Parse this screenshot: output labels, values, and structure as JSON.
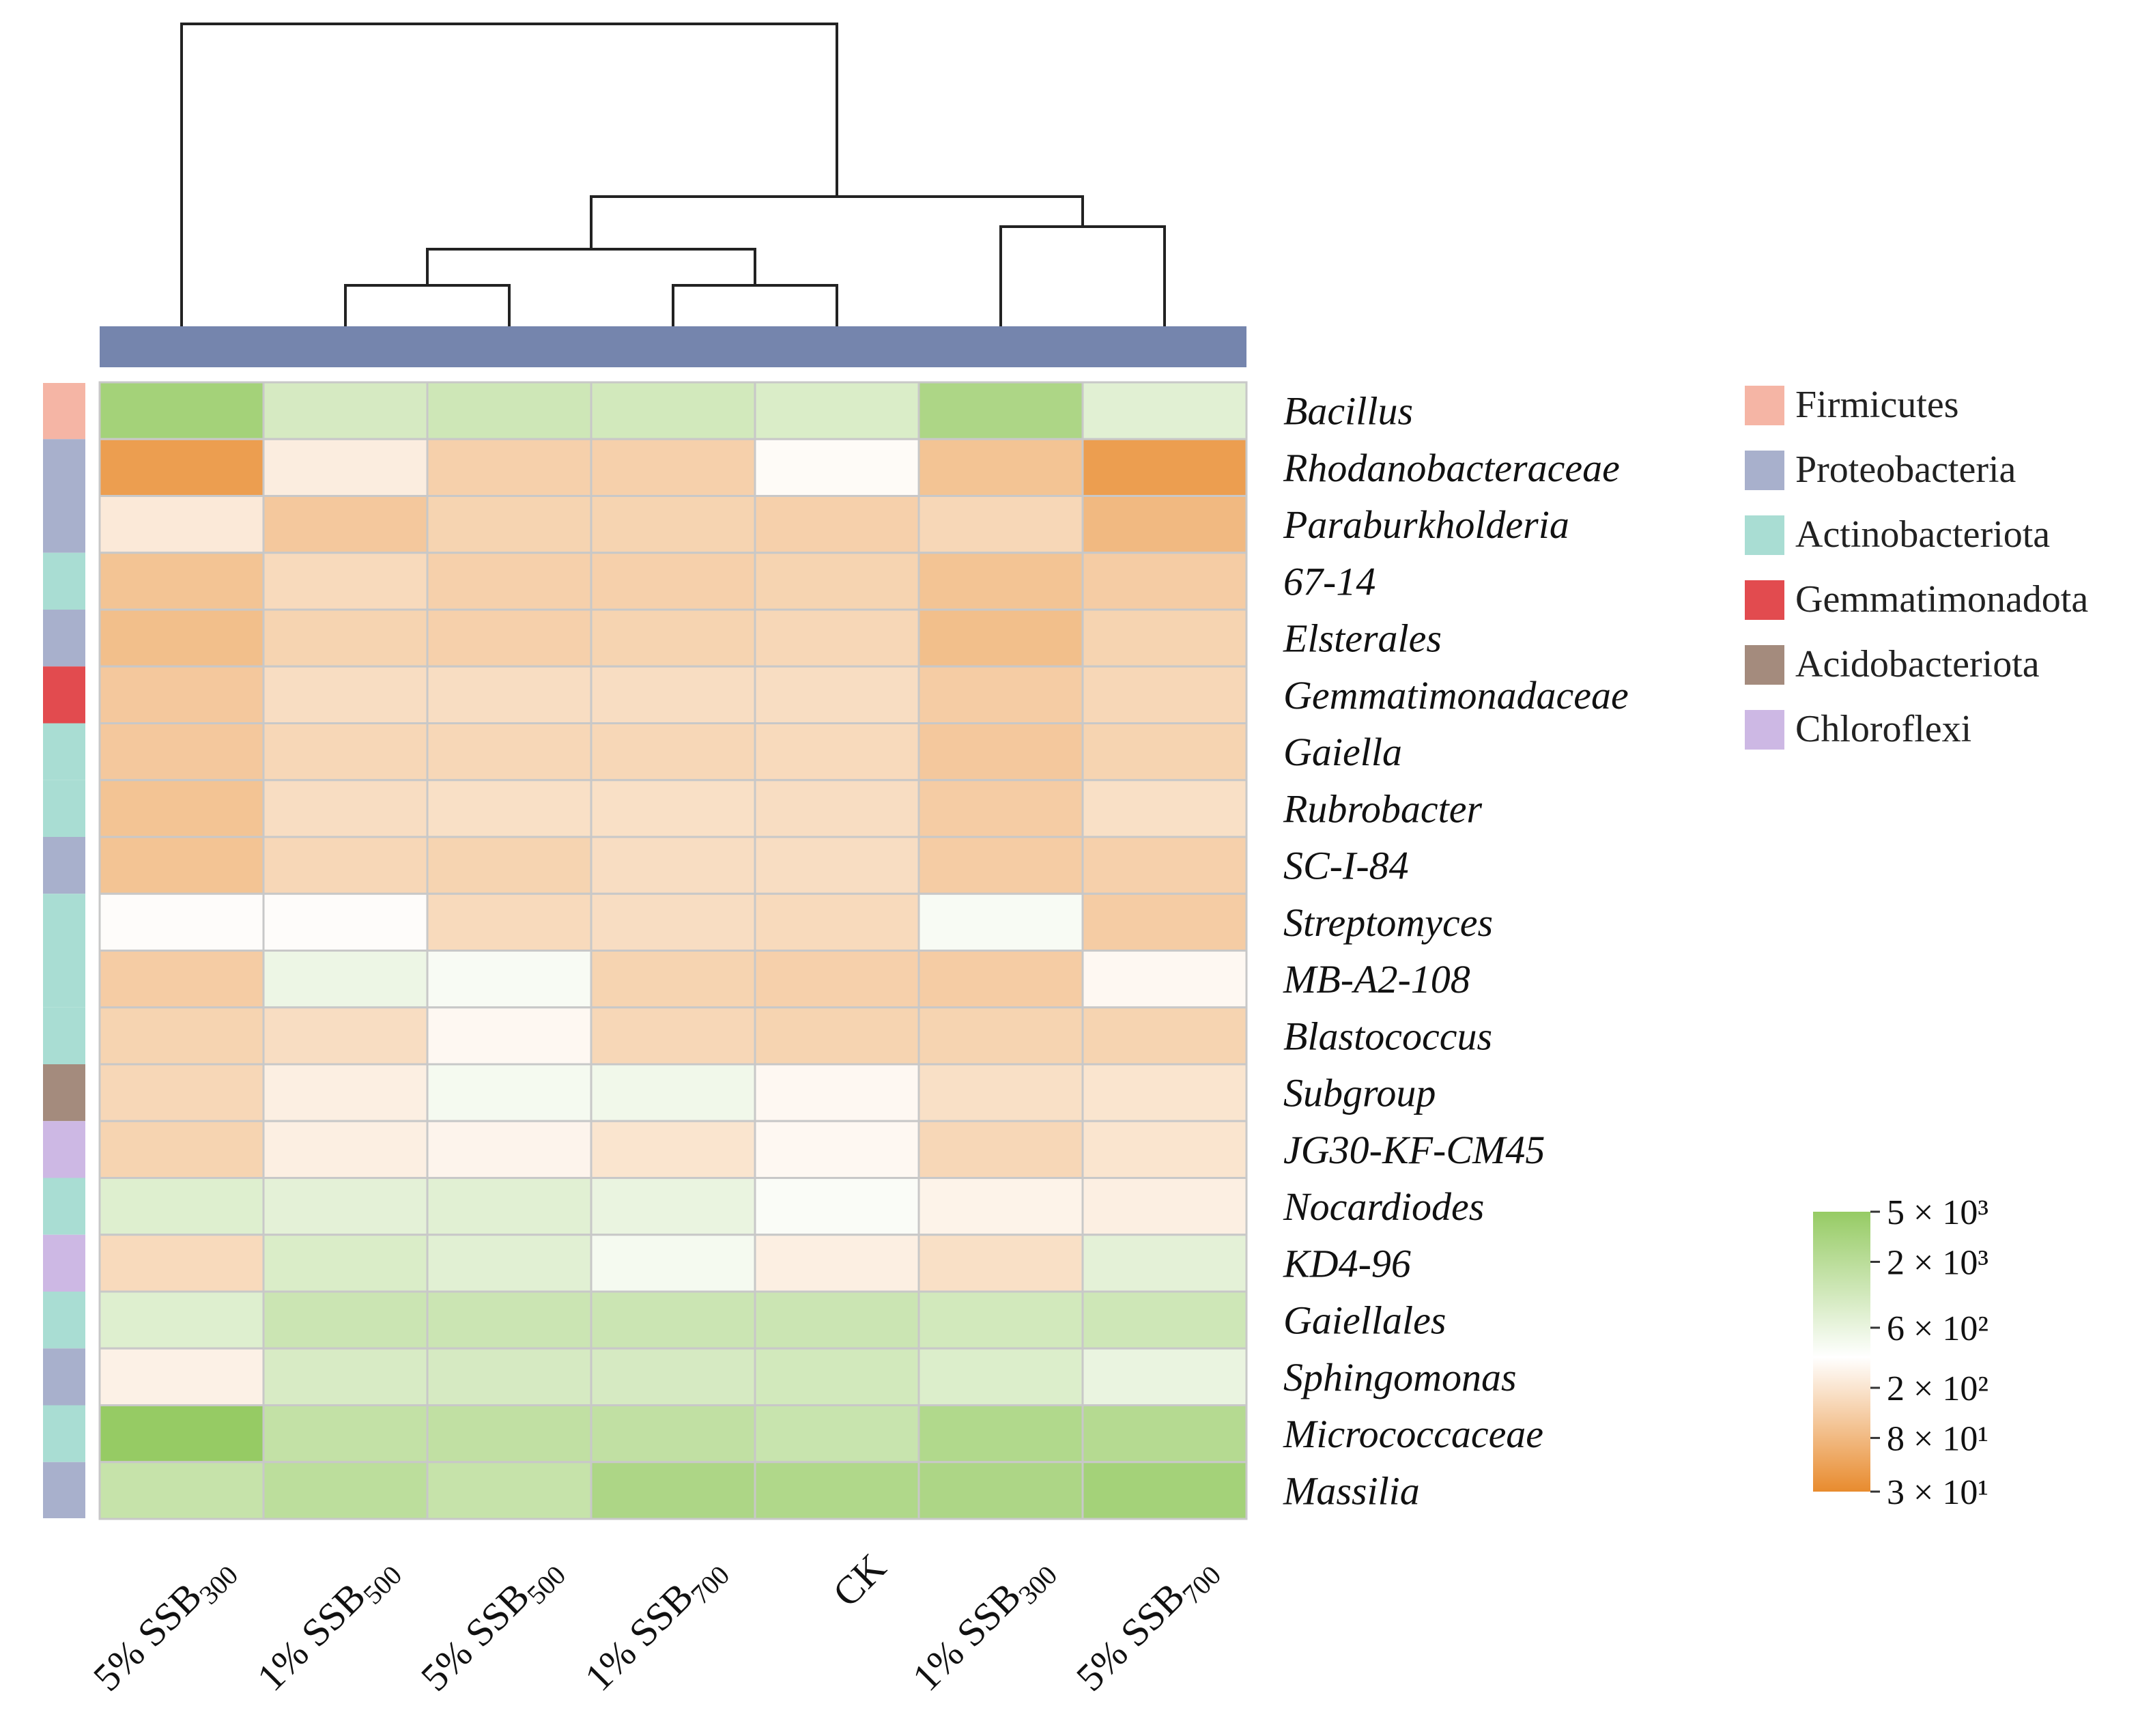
{
  "chart_data": {
    "type": "heatmap",
    "title": "",
    "columns": [
      "5% SSB300",
      "1% SSB500",
      "5% SSB500",
      "1% SSB700",
      "CK",
      "1% SSB300",
      "5% SSB700"
    ],
    "column_parts": [
      {
        "prefix": "5% SSB",
        "sub": "300"
      },
      {
        "prefix": "1% SSB",
        "sub": "500"
      },
      {
        "prefix": "5% SSB",
        "sub": "500"
      },
      {
        "prefix": "1% SSB",
        "sub": "700"
      },
      {
        "prefix": "CK",
        "sub": ""
      },
      {
        "prefix": "1% SSB",
        "sub": "300"
      },
      {
        "prefix": "5% SSB",
        "sub": "700"
      }
    ],
    "rows": [
      "Bacillus",
      "Rhodanobacteraceae",
      "Paraburkholderia",
      "67-14",
      "Elsterales",
      "Gemmatimonadaceae",
      "Gaiella",
      "Rubrobacter",
      "SC-I-84",
      "Streptomyces",
      "MB-A2-108",
      "Blastococcus",
      "Subgroup",
      "JG30-KF-CM45",
      "Nocardiodes",
      "KD4-96",
      "Gaiellales",
      "Sphingomonas",
      "Micrococcaceae",
      "Massilia"
    ],
    "row_phylum": [
      "Firmicutes",
      "Proteobacteria",
      "Proteobacteria",
      "Actinobacteriota",
      "Proteobacteria",
      "Gemmatimonadota",
      "Actinobacteriota",
      "Actinobacteriota",
      "Proteobacteria",
      "Actinobacteriota",
      "Actinobacteriota",
      "Actinobacteriota",
      "Acidobacteriota",
      "Chloroflexi",
      "Actinobacteriota",
      "Chloroflexi",
      "Actinobacteriota",
      "Proteobacteria",
      "Actinobacteriota",
      "Proteobacteria"
    ],
    "values": [
      [
        3500,
        1000,
        1200,
        1100,
        900,
        2800,
        750
      ],
      [
        45,
        240,
        130,
        130,
        320,
        100,
        45
      ],
      [
        220,
        110,
        140,
        140,
        130,
        150,
        80
      ],
      [
        100,
        160,
        130,
        130,
        140,
        100,
        120
      ],
      [
        90,
        140,
        130,
        140,
        150,
        90,
        140
      ],
      [
        110,
        170,
        170,
        170,
        170,
        120,
        150
      ],
      [
        110,
        150,
        150,
        150,
        160,
        110,
        140
      ],
      [
        100,
        170,
        180,
        180,
        170,
        120,
        180
      ],
      [
        100,
        150,
        140,
        170,
        170,
        120,
        130
      ],
      [
        330,
        330,
        160,
        170,
        160,
        420,
        120
      ],
      [
        120,
        550,
        420,
        140,
        130,
        120,
        300
      ],
      [
        140,
        170,
        300,
        150,
        140,
        140,
        140
      ],
      [
        150,
        250,
        450,
        500,
        300,
        180,
        200
      ],
      [
        140,
        250,
        280,
        200,
        300,
        150,
        200
      ],
      [
        800,
        700,
        750,
        600,
        400,
        270,
        250
      ],
      [
        160,
        900,
        750,
        450,
        250,
        180,
        700
      ],
      [
        800,
        1300,
        1300,
        1300,
        1300,
        1100,
        1200
      ],
      [
        260,
        950,
        1000,
        1000,
        1100,
        850,
        600
      ],
      [
        5000,
        1600,
        1700,
        1700,
        1400,
        2500,
        2300
      ],
      [
        1500,
        1900,
        1500,
        2800,
        2600,
        2800,
        3500
      ]
    ],
    "colorbar": {
      "labels": [
        "5 × 10³",
        "2 × 10³",
        "6 × 10²",
        "2 × 10²",
        "8 × 10¹",
        "3 × 10¹"
      ],
      "values": [
        5000,
        2000,
        600,
        200,
        80,
        30
      ],
      "scale": "log",
      "range": [
        30,
        5000
      ],
      "colors": {
        "low": "#E88B2E",
        "mid": "#FFFFFF",
        "high": "#96CB64"
      }
    },
    "legend": [
      {
        "label": "Firmicutes",
        "color": "#F5B5A5"
      },
      {
        "label": "Proteobacteria",
        "color": "#A8B0CC"
      },
      {
        "label": "Actinobacteriota",
        "color": "#A9DDD3"
      },
      {
        "label": "Gemmatimonadota",
        "color": "#E24B4F"
      },
      {
        "label": "Acidobacteriota",
        "color": "#A48B7D"
      },
      {
        "label": "Chloroflexi",
        "color": "#CDB8E4"
      }
    ],
    "dendrogram_order": [
      "5% SSB300",
      "1% SSB500",
      "5% SSB500",
      "1% SSB700",
      "CK",
      "1% SSB300",
      "5% SSB700"
    ],
    "column_group_color": "#7585AD",
    "grid_color": "#C8C8C8"
  }
}
